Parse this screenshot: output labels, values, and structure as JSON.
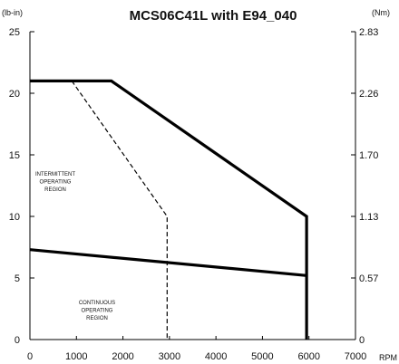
{
  "chart_data": {
    "type": "line",
    "title": "MCS06C41L with E94_040",
    "left_unit": "(lb-in)",
    "right_unit": "(Nm)",
    "x_unit": "RPM",
    "x_ticks": [
      "0",
      "1000",
      "2000",
      "3000",
      "4000",
      "5000",
      "6000",
      "7000"
    ],
    "y_ticks_left": [
      "0",
      "5",
      "10",
      "15",
      "20",
      "25"
    ],
    "y_ticks_right": [
      "0",
      "0.57",
      "1.13",
      "1.70",
      "2.26",
      "2.83"
    ],
    "xlim": [
      0,
      7000
    ],
    "ylim": [
      0,
      25
    ],
    "grid": false,
    "series": [
      {
        "style": "solid",
        "x": [
          0,
          1750,
          5950,
          5950
        ],
        "y": [
          21,
          21,
          10,
          0
        ]
      },
      {
        "style": "solid",
        "x": [
          0,
          5950
        ],
        "y": [
          7.3,
          5.2
        ]
      },
      {
        "style": "dashed",
        "x": [
          900,
          2950,
          2950
        ],
        "y": [
          21,
          10,
          0
        ]
      }
    ],
    "annotations": {
      "intermittent": [
        "INTERMITTENT",
        "OPERATING",
        "REGION"
      ],
      "continuous": [
        "CONTINUOUS",
        "OPERATING",
        "REGION"
      ]
    }
  }
}
